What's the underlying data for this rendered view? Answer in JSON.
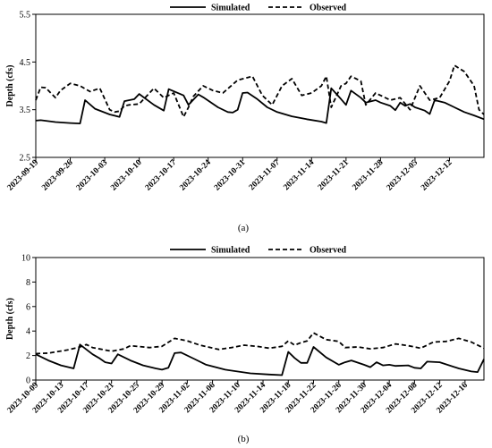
{
  "chart_data": [
    {
      "type": "line",
      "panel_label": "(a)",
      "ylabel": "Depth (cfs)",
      "ylim": [
        2.5,
        5.5
      ],
      "yticks": [
        2.5,
        3.5,
        4.5,
        5.5
      ],
      "xlim": [
        "2023-09-19",
        "2023-12-19"
      ],
      "xticks": [
        "2023-09-19",
        "2023-09-26",
        "2023-10-03",
        "2023-10-10",
        "2023-10-17",
        "2023-10-24",
        "2023-10-31",
        "2023-11-07",
        "2023-11-14",
        "2023-11-21",
        "2023-11-28",
        "2023-12-05",
        "2023-12-12"
      ],
      "legend_position": "top-center",
      "grid": false,
      "series": [
        {
          "name": "Simulated",
          "style": "solid",
          "x": [
            "2023-09-19",
            "2023-09-20",
            "2023-09-23",
            "2023-09-26",
            "2023-09-28",
            "2023-09-29",
            "2023-10-01",
            "2023-10-04",
            "2023-10-06",
            "2023-10-07",
            "2023-10-09",
            "2023-10-10",
            "2023-10-13",
            "2023-10-15",
            "2023-10-16",
            "2023-10-19",
            "2023-10-20",
            "2023-10-22",
            "2023-10-23",
            "2023-10-26",
            "2023-10-28",
            "2023-10-29",
            "2023-10-30",
            "2023-10-31",
            "2023-11-01",
            "2023-11-03",
            "2023-11-05",
            "2023-11-07",
            "2023-11-10",
            "2023-11-13",
            "2023-11-16",
            "2023-11-17",
            "2023-11-18",
            "2023-11-20",
            "2023-11-21",
            "2023-11-22",
            "2023-11-24",
            "2023-11-25",
            "2023-11-27",
            "2023-11-28",
            "2023-11-30",
            "2023-12-01",
            "2023-12-02",
            "2023-12-03",
            "2023-12-04",
            "2023-12-05",
            "2023-12-07",
            "2023-12-08",
            "2023-12-09",
            "2023-12-11",
            "2023-12-13",
            "2023-12-15",
            "2023-12-17",
            "2023-12-19"
          ],
          "y": [
            3.27,
            3.28,
            3.24,
            3.22,
            3.21,
            3.7,
            3.52,
            3.4,
            3.35,
            3.68,
            3.72,
            3.83,
            3.6,
            3.48,
            3.93,
            3.8,
            3.6,
            3.82,
            3.76,
            3.55,
            3.45,
            3.44,
            3.5,
            3.85,
            3.86,
            3.72,
            3.55,
            3.45,
            3.36,
            3.3,
            3.25,
            3.22,
            3.95,
            3.72,
            3.6,
            3.9,
            3.75,
            3.65,
            3.7,
            3.65,
            3.58,
            3.49,
            3.65,
            3.58,
            3.62,
            3.55,
            3.48,
            3.41,
            3.7,
            3.65,
            3.55,
            3.45,
            3.38,
            3.3
          ]
        },
        {
          "name": "Observed",
          "style": "dashed",
          "x": [
            "2023-09-19",
            "2023-09-20",
            "2023-09-21",
            "2023-09-23",
            "2023-09-24",
            "2023-09-26",
            "2023-09-28",
            "2023-09-30",
            "2023-10-02",
            "2023-10-04",
            "2023-10-05",
            "2023-10-06",
            "2023-10-07",
            "2023-10-08",
            "2023-10-10",
            "2023-10-13",
            "2023-10-15",
            "2023-10-17",
            "2023-10-19",
            "2023-10-20",
            "2023-10-21",
            "2023-10-23",
            "2023-10-25",
            "2023-10-27",
            "2023-10-30",
            "2023-11-02",
            "2023-11-04",
            "2023-11-06",
            "2023-11-08",
            "2023-11-10",
            "2023-11-12",
            "2023-11-14",
            "2023-11-16",
            "2023-11-17",
            "2023-11-18",
            "2023-11-20",
            "2023-11-21",
            "2023-11-22",
            "2023-11-24",
            "2023-11-25",
            "2023-11-27",
            "2023-11-30",
            "2023-12-02",
            "2023-12-04",
            "2023-12-06",
            "2023-12-08",
            "2023-12-10",
            "2023-12-12",
            "2023-12-13",
            "2023-12-15",
            "2023-12-17",
            "2023-12-18",
            "2023-12-19"
          ],
          "y": [
            3.7,
            3.97,
            3.96,
            3.75,
            3.9,
            4.05,
            4.0,
            3.88,
            3.95,
            3.5,
            3.45,
            3.47,
            3.58,
            3.6,
            3.62,
            3.95,
            3.75,
            3.85,
            3.35,
            3.55,
            3.78,
            4.0,
            3.9,
            3.85,
            4.12,
            4.2,
            3.8,
            3.6,
            4.0,
            4.15,
            3.8,
            3.85,
            4.0,
            4.2,
            3.55,
            4.0,
            4.05,
            4.2,
            4.1,
            3.6,
            3.85,
            3.7,
            3.75,
            3.5,
            4.0,
            3.7,
            3.75,
            4.1,
            4.43,
            4.3,
            4.0,
            3.5,
            3.4
          ]
        }
      ]
    },
    {
      "type": "line",
      "panel_label": "(b)",
      "ylabel": "Depth (cfs)",
      "ylim": [
        0,
        10
      ],
      "yticks": [
        0,
        2,
        4,
        6,
        8,
        10
      ],
      "xlim": [
        "2023-10-09",
        "2023-12-19"
      ],
      "xticks": [
        "2023-10-09",
        "2023-10-13",
        "2023-10-17",
        "2023-10-21",
        "2023-10-25",
        "2023-10-29",
        "2023-11-02",
        "2023-11-06",
        "2023-11-10",
        "2023-11-14",
        "2023-11-18",
        "2023-11-22",
        "2023-11-26",
        "2023-11-30",
        "2023-12-04",
        "2023-12-08",
        "2023-12-12",
        "2023-12-16"
      ],
      "legend_position": "top-center",
      "grid": false,
      "series": [
        {
          "name": "Simulated",
          "style": "solid",
          "x": [
            "2023-10-09",
            "2023-10-11",
            "2023-10-13",
            "2023-10-15",
            "2023-10-16",
            "2023-10-18",
            "2023-10-19",
            "2023-10-20",
            "2023-10-21",
            "2023-10-22",
            "2023-10-24",
            "2023-10-26",
            "2023-10-28",
            "2023-10-29",
            "2023-10-30",
            "2023-10-31",
            "2023-11-01",
            "2023-11-03",
            "2023-11-05",
            "2023-11-08",
            "2023-11-12",
            "2023-11-15",
            "2023-11-17",
            "2023-11-18",
            "2023-11-19",
            "2023-11-20",
            "2023-11-21",
            "2023-11-22",
            "2023-11-24",
            "2023-11-26",
            "2023-11-27",
            "2023-11-28",
            "2023-11-30",
            "2023-12-01",
            "2023-12-02",
            "2023-12-03",
            "2023-12-04",
            "2023-12-05",
            "2023-12-07",
            "2023-12-08",
            "2023-12-09",
            "2023-12-10",
            "2023-12-12",
            "2023-12-15",
            "2023-12-17",
            "2023-12-18",
            "2023-12-19"
          ],
          "y": [
            2.1,
            1.6,
            1.2,
            0.95,
            2.9,
            2.1,
            1.8,
            1.45,
            1.35,
            2.1,
            1.6,
            1.2,
            0.95,
            0.85,
            1.0,
            2.2,
            2.25,
            1.75,
            1.25,
            0.85,
            0.55,
            0.45,
            0.4,
            2.3,
            1.8,
            1.4,
            1.4,
            2.7,
            1.85,
            1.25,
            1.45,
            1.6,
            1.25,
            1.05,
            1.45,
            1.2,
            1.25,
            1.15,
            1.2,
            1.0,
            0.95,
            1.5,
            1.45,
            0.95,
            0.7,
            0.65,
            1.7
          ]
        },
        {
          "name": "Observed",
          "style": "dashed",
          "x": [
            "2023-10-09",
            "2023-10-11",
            "2023-10-14",
            "2023-10-16",
            "2023-10-17",
            "2023-10-18",
            "2023-10-21",
            "2023-10-23",
            "2023-10-24",
            "2023-10-27",
            "2023-10-29",
            "2023-10-31",
            "2023-11-02",
            "2023-11-04",
            "2023-11-07",
            "2023-11-09",
            "2023-11-11",
            "2023-11-13",
            "2023-11-15",
            "2023-11-17",
            "2023-11-18",
            "2023-11-19",
            "2023-11-20",
            "2023-11-21",
            "2023-11-22",
            "2023-11-24",
            "2023-11-26",
            "2023-11-27",
            "2023-11-29",
            "2023-12-01",
            "2023-12-03",
            "2023-12-05",
            "2023-12-07",
            "2023-12-09",
            "2023-12-11",
            "2023-12-13",
            "2023-12-15",
            "2023-12-17",
            "2023-12-19"
          ],
          "y": [
            2.15,
            2.2,
            2.45,
            2.7,
            2.9,
            2.65,
            2.35,
            2.55,
            2.8,
            2.65,
            2.75,
            3.4,
            3.2,
            2.85,
            2.5,
            2.65,
            2.85,
            2.75,
            2.6,
            2.75,
            3.2,
            2.85,
            3.05,
            3.2,
            3.85,
            3.3,
            3.15,
            2.65,
            2.7,
            2.55,
            2.65,
            2.95,
            2.8,
            2.6,
            3.1,
            3.15,
            3.4,
            3.1,
            2.6
          ]
        }
      ]
    }
  ]
}
